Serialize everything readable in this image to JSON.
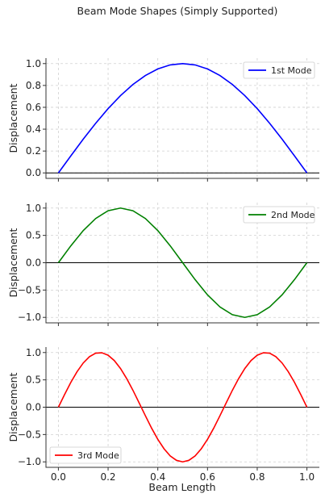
{
  "chart_data": {
    "type": "line",
    "title": "Beam Mode Shapes (Simply Supported)",
    "xlabel": "Beam Length",
    "xlim": [
      -0.05,
      1.05
    ],
    "x_ticks": [
      0.0,
      0.2,
      0.4,
      0.6,
      0.8,
      1.0
    ],
    "x_tick_labels": [
      "0.0",
      "0.2",
      "0.4",
      "0.6",
      "0.8",
      "1.0"
    ],
    "grid": true,
    "subplots": [
      {
        "ylabel": "Displacement",
        "ylim": [
          -0.05,
          1.05
        ],
        "y_ticks": [
          0.0,
          0.2,
          0.4,
          0.6,
          0.8,
          1.0
        ],
        "y_tick_labels": [
          "0.0",
          "0.2",
          "0.4",
          "0.6",
          "0.8",
          "1.0"
        ],
        "legend_position": "top-right",
        "series": {
          "name": "1st Mode",
          "color": "#0000ff",
          "x": [
            0.0,
            0.05,
            0.1,
            0.15,
            0.2,
            0.25,
            0.3,
            0.35,
            0.4,
            0.45,
            0.5,
            0.55,
            0.6,
            0.65,
            0.7,
            0.75,
            0.8,
            0.85,
            0.9,
            0.95,
            1.0
          ],
          "y": [
            0.0,
            0.156,
            0.309,
            0.454,
            0.588,
            0.707,
            0.809,
            0.891,
            0.951,
            0.988,
            1.0,
            0.988,
            0.951,
            0.891,
            0.809,
            0.707,
            0.588,
            0.454,
            0.309,
            0.156,
            0.0
          ]
        }
      },
      {
        "ylabel": "Displacement",
        "ylim": [
          -1.1,
          1.1
        ],
        "y_ticks": [
          -1.0,
          -0.5,
          0.0,
          0.5,
          1.0
        ],
        "y_tick_labels": [
          "−1.0",
          "−0.5",
          "0.0",
          "0.5",
          "1.0"
        ],
        "legend_position": "top-right",
        "series": {
          "name": "2nd Mode",
          "color": "#008000",
          "x": [
            0.0,
            0.05,
            0.1,
            0.15,
            0.2,
            0.25,
            0.3,
            0.35,
            0.4,
            0.45,
            0.5,
            0.55,
            0.6,
            0.65,
            0.7,
            0.75,
            0.8,
            0.85,
            0.9,
            0.95,
            1.0
          ],
          "y": [
            0.0,
            0.309,
            0.588,
            0.809,
            0.951,
            1.0,
            0.951,
            0.809,
            0.588,
            0.309,
            0.0,
            -0.309,
            -0.588,
            -0.809,
            -0.951,
            -1.0,
            -0.951,
            -0.809,
            -0.588,
            -0.309,
            0.0
          ]
        }
      },
      {
        "ylabel": "Displacement",
        "ylim": [
          -1.1,
          1.1
        ],
        "y_ticks": [
          -1.0,
          -0.5,
          0.0,
          0.5,
          1.0
        ],
        "y_tick_labels": [
          "−1.0",
          "−0.5",
          "0.0",
          "0.5",
          "1.0"
        ],
        "legend_position": "bottom-left",
        "series": {
          "name": "3rd Mode",
          "color": "#ff0000",
          "x": [
            0.0,
            0.025,
            0.05,
            0.075,
            0.1,
            0.125,
            0.15,
            0.175,
            0.2,
            0.225,
            0.25,
            0.275,
            0.3,
            0.325,
            0.35,
            0.375,
            0.4,
            0.425,
            0.45,
            0.475,
            0.5,
            0.525,
            0.55,
            0.575,
            0.6,
            0.625,
            0.65,
            0.675,
            0.7,
            0.725,
            0.75,
            0.775,
            0.8,
            0.825,
            0.85,
            0.875,
            0.9,
            0.925,
            0.95,
            0.975,
            1.0
          ],
          "y": [
            0.0,
            0.233,
            0.454,
            0.649,
            0.809,
            0.924,
            0.988,
            0.996,
            0.951,
            0.853,
            0.707,
            0.522,
            0.309,
            0.078,
            -0.156,
            -0.383,
            -0.588,
            -0.76,
            -0.891,
            -0.972,
            -1.0,
            -0.972,
            -0.891,
            -0.76,
            -0.588,
            -0.383,
            -0.156,
            0.078,
            0.309,
            0.522,
            0.707,
            0.853,
            0.951,
            0.996,
            0.988,
            0.924,
            0.809,
            0.649,
            0.454,
            0.233,
            0.0
          ]
        }
      }
    ]
  }
}
